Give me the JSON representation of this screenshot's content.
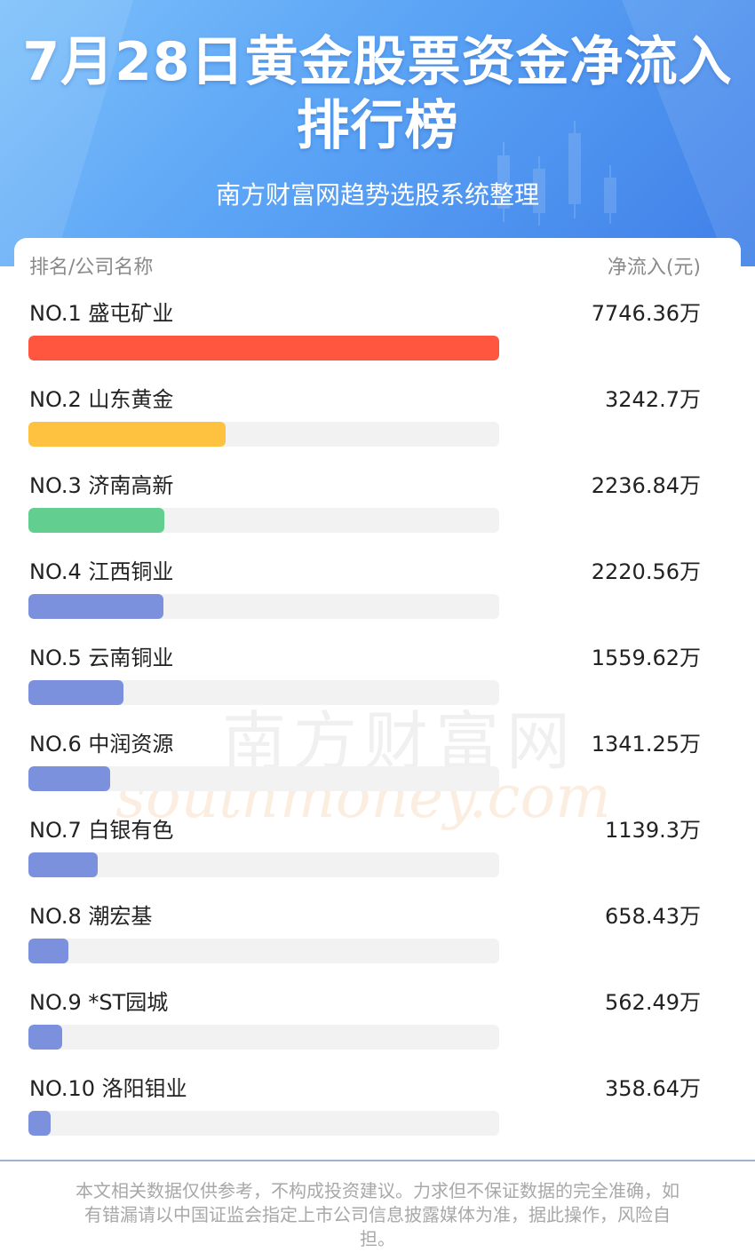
{
  "header": {
    "title": "7月28日黄金股票资金净流入排行榜",
    "subtitle": "南方财富网趋势选股系统整理"
  },
  "columns": {
    "left": "排名/公司名称",
    "right": "净流入(元)"
  },
  "watermark": {
    "line1": "南方财富网",
    "line2": "southmoney.com"
  },
  "colors": {
    "rank1": "#ff5640",
    "rank2": "#ffc240",
    "rank3": "#62ce90",
    "others": "#7b91dd",
    "track": "#f2f2f2"
  },
  "chart_data": {
    "type": "bar",
    "orientation": "horizontal",
    "categories": [
      "NO.1 盛屯矿业",
      "NO.2 山东黄金",
      "NO.3 济南高新",
      "NO.4 江西铜业",
      "NO.5 云南铜业",
      "NO.6 中润资源",
      "NO.7 白银有色",
      "NO.8 潮宏基",
      "NO.9 *ST园城",
      "NO.10 洛阳钼业"
    ],
    "values": [
      7746.36,
      3242.7,
      2236.84,
      2220.56,
      1559.62,
      1341.25,
      1139.3,
      658.43,
      562.49,
      358.64
    ],
    "labels": [
      "7746.36万",
      "3242.7万",
      "2236.84万",
      "2220.56万",
      "1559.62万",
      "1341.25万",
      "1139.3万",
      "658.43万",
      "562.49万",
      "358.64万"
    ],
    "unit": "万",
    "xlim": [
      0,
      7746.36
    ]
  },
  "disclaimer": "本文相关数据仅供参考，不构成投资建议。力求但不保证数据的完全准确，如有错漏请以中国证监会指定上市公司信息披露媒体为准，据此操作，风险自担。"
}
